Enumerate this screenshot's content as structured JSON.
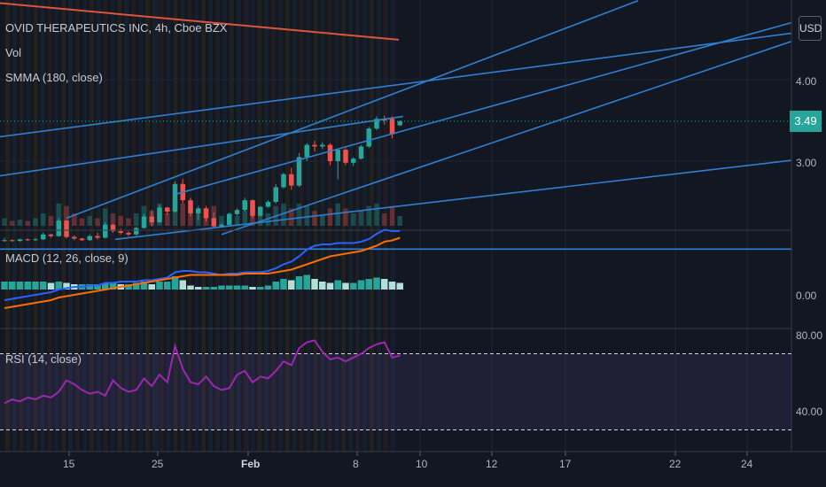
{
  "header": {
    "title": "OVID THERAPEUTICS INC, 4h, Cboe BZX",
    "vol_label": "Vol",
    "smma_label": "SMMA (180, close)",
    "currency": "USD"
  },
  "price_axis": {
    "labels": [
      "4.00",
      "3.00"
    ],
    "last_price": "3.49"
  },
  "indicators": {
    "macd_label": "MACD (12, 26, close, 9)",
    "macd_axis_label": "0.00",
    "rsi_label": "RSI (14, close)",
    "rsi_axis_labels": [
      "80.00",
      "40.00"
    ]
  },
  "time_axis": {
    "labels": [
      "15",
      "25",
      "Feb",
      "8",
      "10",
      "12",
      "17",
      "22",
      "24"
    ]
  },
  "colors": {
    "background": "#131722",
    "up": "#26a69a",
    "down": "#ef5350",
    "trendline": "#2f7fd3",
    "smma": "#e0533f",
    "macd": "#2962ff",
    "signal": "#ff6d00",
    "rsi": "#9c27b0"
  },
  "chart_data": {
    "type": "candlestick",
    "series": [
      {
        "name": "Vol"
      },
      {
        "name": "SMMA (180, close)"
      },
      {
        "name": "MACD (12, 26, close, 9)"
      },
      {
        "name": "RSI (14, close)"
      }
    ],
    "candles": [
      [
        2.03,
        2.06,
        2.01,
        2.03
      ],
      [
        2.03,
        2.04,
        2.01,
        2.02
      ],
      [
        2.02,
        2.05,
        2.01,
        2.04
      ],
      [
        2.04,
        2.05,
        2.02,
        2.03
      ],
      [
        2.03,
        2.06,
        2.02,
        2.04
      ],
      [
        2.04,
        2.12,
        2.03,
        2.1
      ],
      [
        2.1,
        2.11,
        2.06,
        2.08
      ],
      [
        2.08,
        2.3,
        2.07,
        2.27
      ],
      [
        2.27,
        2.28,
        2.05,
        2.07
      ],
      [
        2.07,
        2.09,
        2.03,
        2.05
      ],
      [
        2.05,
        2.06,
        2.02,
        2.03
      ],
      [
        2.03,
        2.1,
        2.02,
        2.08
      ],
      [
        2.08,
        2.12,
        2.04,
        2.06
      ],
      [
        2.06,
        2.25,
        2.05,
        2.22
      ],
      [
        2.22,
        2.23,
        2.12,
        2.14
      ],
      [
        2.14,
        2.17,
        2.1,
        2.12
      ],
      [
        2.12,
        2.14,
        2.08,
        2.1
      ],
      [
        2.1,
        2.2,
        2.08,
        2.18
      ],
      [
        2.18,
        2.35,
        2.17,
        2.32
      ],
      [
        2.32,
        2.4,
        2.2,
        2.25
      ],
      [
        2.25,
        2.46,
        2.24,
        2.43
      ],
      [
        2.43,
        2.44,
        2.34,
        2.38
      ],
      [
        2.38,
        2.75,
        2.37,
        2.72
      ],
      [
        2.72,
        2.78,
        2.48,
        2.52
      ],
      [
        2.52,
        2.55,
        2.32,
        2.36
      ],
      [
        2.36,
        2.45,
        2.28,
        2.42
      ],
      [
        2.42,
        2.45,
        2.26,
        2.3
      ],
      [
        2.3,
        2.37,
        2.18,
        2.2
      ],
      [
        2.2,
        2.24,
        2.18,
        2.22
      ],
      [
        2.22,
        2.37,
        2.21,
        2.35
      ],
      [
        2.35,
        2.42,
        2.33,
        2.4
      ],
      [
        2.4,
        2.55,
        2.38,
        2.52
      ],
      [
        2.52,
        2.53,
        2.3,
        2.33
      ],
      [
        2.33,
        2.45,
        2.32,
        2.44
      ],
      [
        2.44,
        2.52,
        2.43,
        2.5
      ],
      [
        2.5,
        2.72,
        2.48,
        2.68
      ],
      [
        2.68,
        2.86,
        2.66,
        2.84
      ],
      [
        2.84,
        2.92,
        2.65,
        2.7
      ],
      [
        2.7,
        3.1,
        2.68,
        3.05
      ],
      [
        3.05,
        3.22,
        3.0,
        3.2
      ],
      [
        3.2,
        3.25,
        3.12,
        3.18
      ],
      [
        3.18,
        3.23,
        3.15,
        3.2
      ],
      [
        3.2,
        3.22,
        2.95,
        3.0
      ],
      [
        3.0,
        3.15,
        2.78,
        3.14
      ],
      [
        3.14,
        3.16,
        2.95,
        2.98
      ],
      [
        2.98,
        3.05,
        2.94,
        3.03
      ],
      [
        3.03,
        3.2,
        3.02,
        3.18
      ],
      [
        3.18,
        3.42,
        3.16,
        3.4
      ],
      [
        3.4,
        3.55,
        3.38,
        3.52
      ],
      [
        3.52,
        3.56,
        3.45,
        3.5
      ],
      [
        3.52,
        3.55,
        3.28,
        3.33
      ],
      [
        3.44,
        3.5,
        3.43,
        3.49
      ]
    ],
    "volume": [
      0.3,
      0.2,
      0.25,
      0.2,
      0.3,
      0.5,
      0.4,
      0.9,
      0.8,
      0.5,
      0.3,
      0.4,
      0.3,
      0.7,
      0.5,
      0.4,
      0.3,
      0.5,
      0.8,
      0.6,
      0.9,
      0.5,
      1.0,
      0.9,
      0.7,
      0.6,
      0.7,
      0.8,
      0.4,
      0.5,
      0.4,
      0.6,
      0.8,
      0.5,
      0.5,
      0.8,
      0.9,
      0.7,
      0.9,
      0.8,
      0.6,
      0.4,
      0.7,
      0.9,
      0.7,
      0.5,
      0.6,
      0.8,
      0.9,
      0.5,
      0.8,
      0.4
    ],
    "smma": [
      [
        0,
        4.94
      ],
      [
        450,
        4.49
      ]
    ],
    "macd_hist": [
      0.06,
      0.06,
      0.06,
      0.06,
      0.06,
      0.06,
      0.05,
      0.06,
      0.05,
      0.04,
      0.04,
      0.04,
      0.04,
      0.05,
      0.05,
      0.04,
      0.04,
      0.05,
      0.06,
      0.04,
      0.06,
      0.06,
      0.1,
      0.07,
      0.03,
      0.02,
      0.02,
      0.02,
      0.03,
      0.03,
      0.03,
      0.03,
      0.02,
      0.02,
      0.03,
      0.06,
      0.08,
      0.07,
      0.1,
      0.11,
      0.08,
      0.06,
      0.05,
      0.07,
      0.05,
      0.05,
      0.07,
      0.08,
      0.09,
      0.08,
      0.06,
      0.05
    ],
    "macd_line": [
      -0.08,
      -0.07,
      -0.06,
      -0.05,
      -0.04,
      -0.03,
      -0.02,
      0.0,
      0.01,
      0.02,
      0.02,
      0.03,
      0.03,
      0.05,
      0.05,
      0.06,
      0.06,
      0.06,
      0.07,
      0.07,
      0.08,
      0.09,
      0.13,
      0.14,
      0.14,
      0.13,
      0.13,
      0.12,
      0.11,
      0.12,
      0.12,
      0.13,
      0.13,
      0.13,
      0.14,
      0.16,
      0.19,
      0.21,
      0.25,
      0.3,
      0.33,
      0.34,
      0.34,
      0.35,
      0.35,
      0.35,
      0.36,
      0.38,
      0.42,
      0.45,
      0.44,
      0.44
    ],
    "signal_line": [
      -0.14,
      -0.13,
      -0.12,
      -0.11,
      -0.1,
      -0.09,
      -0.08,
      -0.06,
      -0.05,
      -0.04,
      -0.03,
      -0.02,
      -0.01,
      0.0,
      0.01,
      0.02,
      0.03,
      0.04,
      0.05,
      0.06,
      0.07,
      0.08,
      0.09,
      0.1,
      0.11,
      0.11,
      0.11,
      0.11,
      0.11,
      0.11,
      0.11,
      0.12,
      0.12,
      0.12,
      0.12,
      0.13,
      0.14,
      0.15,
      0.17,
      0.19,
      0.21,
      0.23,
      0.25,
      0.26,
      0.27,
      0.28,
      0.29,
      0.31,
      0.33,
      0.36,
      0.37,
      0.39
    ],
    "rsi": [
      44,
      46,
      45,
      47,
      46,
      48,
      47,
      50,
      56,
      54,
      51,
      49,
      50,
      48,
      56,
      52,
      50,
      51,
      57,
      53,
      59,
      55,
      74,
      62,
      55,
      54,
      58,
      53,
      51,
      52,
      59,
      61,
      55,
      58,
      57,
      61,
      66,
      64,
      73,
      76,
      77,
      71,
      67,
      68,
      66,
      68,
      70,
      73,
      75,
      76,
      68,
      69
    ],
    "rsi_levels": [
      70,
      30
    ],
    "trendlines": [
      [
        [
          0,
          2.82
        ],
        [
          455,
          3.55
        ]
      ],
      [
        [
          75,
          2.3
        ],
        [
          720,
          4.97
        ]
      ],
      [
        [
          200,
          2.6
        ],
        [
          893,
          4.7
        ]
      ],
      [
        [
          0,
          3.3
        ],
        [
          893,
          4.57
        ]
      ],
      [
        [
          130,
          2.04
        ],
        [
          893,
          3.01
        ]
      ],
      [
        [
          250,
          2.1
        ],
        [
          893,
          4.47
        ]
      ],
      [
        [
          0,
          1.92
        ],
        [
          893,
          1.92
        ]
      ]
    ]
  }
}
